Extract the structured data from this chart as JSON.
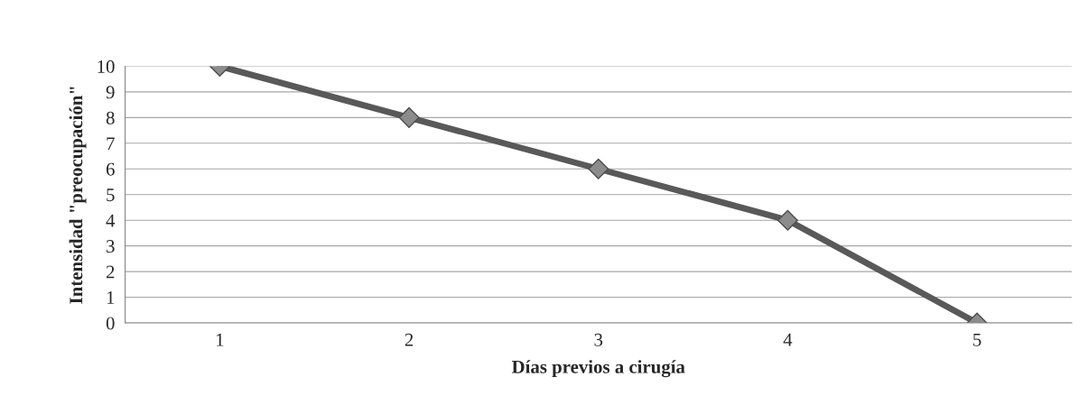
{
  "chart_data": {
    "type": "line",
    "xlabel": "Días previos a cirugía",
    "ylabel": "Intensidad \"preocupación\"",
    "categories": [
      "1",
      "2",
      "3",
      "4",
      "5"
    ],
    "series": [
      {
        "color": "#595959",
        "values": [
          10,
          8,
          6,
          4,
          0
        ]
      }
    ],
    "ylim": [
      0,
      10
    ],
    "yticks": [
      0,
      1,
      2,
      3,
      4,
      5,
      6,
      7,
      8,
      9,
      10
    ],
    "grid": "y",
    "marker": "diamond",
    "line_style": "solid"
  }
}
